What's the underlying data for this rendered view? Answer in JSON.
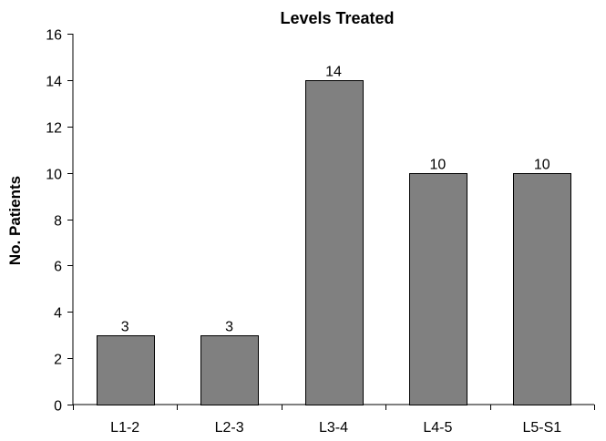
{
  "chart_data": {
    "type": "bar",
    "title": "Levels Treated",
    "xlabel": "",
    "ylabel": "No. Patients",
    "categories": [
      "L1-2",
      "L2-3",
      "L3-4",
      "L4-5",
      "L5-S1"
    ],
    "values": [
      3,
      3,
      14,
      10,
      10
    ],
    "data_labels": [
      "3",
      "3",
      "14",
      "10",
      "10"
    ],
    "ylim": [
      0,
      16
    ],
    "yticks": [
      0,
      2,
      4,
      6,
      8,
      10,
      12,
      14,
      16
    ],
    "grid": false,
    "legend": "none",
    "bar_color": "#808080",
    "bar_edge_color": "#000000"
  }
}
